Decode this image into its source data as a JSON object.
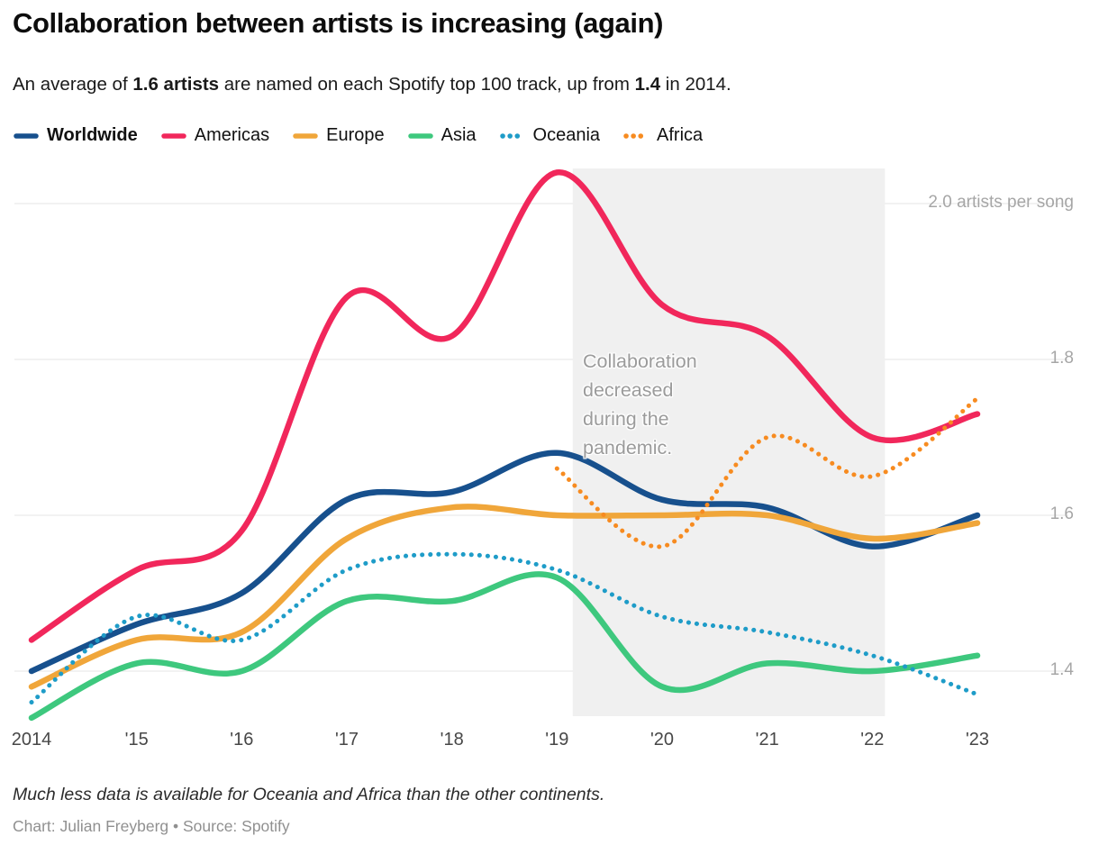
{
  "header": {
    "title": "Collaboration between artists is increasing (again)",
    "subtitle": {
      "part1": "An average of ",
      "bold1": "1.6 artists",
      "part2": " are named on each Spotify top 100 track, up from ",
      "bold2": "1.4",
      "part3": " in 2014."
    }
  },
  "annotation": "Collaboration decreased during the pandemic.",
  "footer": {
    "note": "Much less data is available for Oceania and Africa than the other continents.",
    "credit": "Chart: Julian Freyberg • Source: Spotify"
  },
  "colors": {
    "worldwide": "#17508d",
    "americas": "#f1275b",
    "europe": "#f0a63a",
    "asia": "#3ec87e",
    "oceania": "#1e9cc8",
    "africa": "#f78b20",
    "gridline": "#e4e4e4",
    "pandemic_band": "#f0f0f0",
    "axis_label": "#a6a6a6"
  },
  "chart_data": {
    "type": "line",
    "title": "Collaboration between artists is increasing (again)",
    "xlabel": "",
    "ylabel": "artists per song",
    "x": [
      2014,
      2015,
      2016,
      2017,
      2018,
      2019,
      2020,
      2021,
      2022,
      2023
    ],
    "x_tick_labels": [
      "2014",
      "'15",
      "'16",
      "'17",
      "'18",
      "'19",
      "'20",
      "'21",
      "'22",
      "'23"
    ],
    "xlim": [
      2014,
      2023
    ],
    "y_ticks": [
      1.4,
      1.6,
      1.8,
      2.0
    ],
    "y_tick_labels": [
      "1.4",
      "1.6",
      "1.8",
      "2.0 artists per song"
    ],
    "ylim": [
      1.33,
      2.06
    ],
    "grid": "horizontal",
    "legend_position": "top",
    "pandemic_band": {
      "x_start": 2019.15,
      "x_end": 2022.12,
      "label": "Collaboration decreased during the pandemic."
    },
    "series": [
      {
        "name": "Worldwide",
        "color": "#17508d",
        "style": "solid",
        "emphasis": true,
        "values": [
          1.4,
          1.46,
          1.5,
          1.62,
          1.63,
          1.68,
          1.62,
          1.61,
          1.56,
          1.6
        ]
      },
      {
        "name": "Americas",
        "color": "#f1275b",
        "style": "solid",
        "values": [
          1.44,
          1.53,
          1.58,
          1.88,
          1.83,
          2.04,
          1.87,
          1.83,
          1.7,
          1.73
        ]
      },
      {
        "name": "Europe",
        "color": "#f0a63a",
        "style": "solid",
        "values": [
          1.38,
          1.44,
          1.45,
          1.57,
          1.61,
          1.6,
          1.6,
          1.6,
          1.57,
          1.59
        ]
      },
      {
        "name": "Asia",
        "color": "#3ec87e",
        "style": "solid",
        "values": [
          1.34,
          1.41,
          1.4,
          1.49,
          1.49,
          1.52,
          1.38,
          1.41,
          1.4,
          1.42
        ]
      },
      {
        "name": "Oceania",
        "color": "#1e9cc8",
        "style": "dotted",
        "values": [
          1.36,
          1.47,
          1.44,
          1.53,
          1.55,
          1.53,
          1.47,
          1.45,
          1.42,
          1.37
        ]
      },
      {
        "name": "Africa",
        "color": "#f78b20",
        "style": "dotted",
        "x": [
          2019,
          2020,
          2021,
          2022,
          2023
        ],
        "values": [
          1.66,
          1.56,
          1.7,
          1.65,
          1.75
        ]
      }
    ]
  }
}
